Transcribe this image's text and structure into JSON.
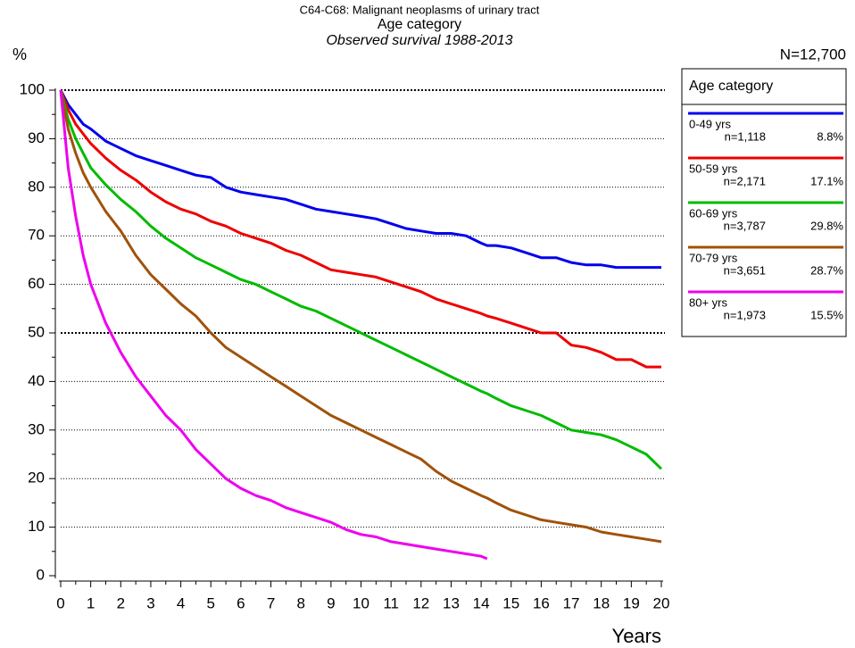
{
  "chart_data": {
    "type": "line",
    "title": "C64-C68: Malignant neoplasms of urinary tract",
    "subtitle": "Age category",
    "subtitle2": "Observed survival 1988-2013",
    "y_label": "%",
    "x_label": "Years",
    "total": "N=12,700",
    "legend_title": "Age category",
    "legend": "right",
    "grid": true,
    "xlim": [
      0,
      20
    ],
    "xticks": [
      0,
      1,
      2,
      3,
      4,
      5,
      6,
      7,
      8,
      9,
      10,
      11,
      12,
      13,
      14,
      15,
      16,
      17,
      18,
      19,
      20
    ],
    "ylim": [
      0,
      100
    ],
    "yticks": [
      0,
      10,
      20,
      30,
      40,
      50,
      60,
      70,
      80,
      90,
      100
    ],
    "x": [
      0,
      0.25,
      0.5,
      0.75,
      1,
      1.5,
      2,
      2.5,
      3,
      3.5,
      4,
      4.5,
      5,
      5.5,
      6,
      6.5,
      7,
      7.5,
      8,
      8.5,
      9,
      9.5,
      10,
      10.5,
      11,
      11.5,
      12,
      12.5,
      13,
      13.5,
      14,
      14.2,
      14.5,
      15,
      15.5,
      16,
      16.5,
      17,
      17.5,
      18,
      18.5,
      19,
      19.5,
      20
    ],
    "series": [
      {
        "name": "0-49 yrs",
        "n": "n=1,118",
        "percent": "8.8%",
        "color": "#0000ee",
        "values": [
          100,
          97,
          95,
          93,
          92,
          89.5,
          88,
          86.5,
          85.5,
          84.5,
          83.5,
          82.5,
          82,
          80,
          79,
          78.5,
          78,
          77.5,
          76.5,
          75.5,
          75,
          74.5,
          74,
          73.5,
          72.5,
          71.5,
          71,
          70.5,
          70.5,
          70,
          68.5,
          68,
          68,
          67.5,
          66.5,
          65.5,
          65.5,
          64.5,
          64,
          64,
          63.5,
          63.5,
          63.5,
          63.5
        ]
      },
      {
        "name": "50-59 yrs",
        "n": "n=2,171",
        "percent": "17.1%",
        "color": "#ee0000",
        "values": [
          100,
          96,
          93,
          91,
          89,
          86,
          83.5,
          81.5,
          79,
          77,
          75.5,
          74.5,
          73,
          72,
          70.5,
          69.5,
          68.5,
          67,
          66,
          64.5,
          63,
          62.5,
          62,
          61.5,
          60.5,
          59.5,
          58.5,
          57,
          56,
          55,
          54,
          53.5,
          53,
          52,
          51,
          50,
          50,
          47.5,
          47,
          46,
          44.5,
          44.5,
          43,
          43
        ]
      },
      {
        "name": "60-69 yrs",
        "n": "n=3,787",
        "percent": "29.8%",
        "color": "#00bb00",
        "values": [
          100,
          94,
          90,
          87,
          84,
          80.5,
          77.5,
          75,
          72,
          69.5,
          67.5,
          65.5,
          64,
          62.5,
          61,
          60,
          58.5,
          57,
          55.5,
          54.5,
          53,
          51.5,
          50,
          48.5,
          47,
          45.5,
          44,
          42.5,
          41,
          39.5,
          38,
          37.5,
          36.5,
          35,
          34,
          33,
          31.5,
          30,
          29.5,
          29,
          28,
          26.5,
          25,
          22
        ]
      },
      {
        "name": "70-79 yrs",
        "n": "n=3,651",
        "percent": "28.7%",
        "color": "#a0520a",
        "values": [
          100,
          92,
          87,
          83,
          80,
          75,
          71,
          66,
          62,
          59,
          56,
          53.5,
          50,
          47,
          45,
          43,
          41,
          39,
          37,
          35,
          33,
          31.5,
          30,
          28.5,
          27,
          25.5,
          24,
          21.5,
          19.5,
          18,
          16.5,
          16,
          15,
          13.5,
          12.5,
          11.5,
          11,
          10.5,
          10,
          9,
          8.5,
          8,
          7.5,
          7
        ]
      },
      {
        "name": "80+ yrs",
        "n": "n=1,973",
        "percent": "15.5%",
        "color": "#ee00ee",
        "values": [
          100,
          84,
          74,
          66,
          60,
          52,
          46,
          41,
          37,
          33,
          30,
          26,
          23,
          20,
          18,
          16.5,
          15.5,
          14,
          13,
          12,
          11,
          9.5,
          8.5,
          8,
          7,
          6.5,
          6,
          5.5,
          5,
          4.5,
          4,
          3.5,
          null,
          null,
          null,
          null,
          null,
          null,
          null,
          null,
          null,
          null,
          null,
          null
        ]
      }
    ]
  }
}
